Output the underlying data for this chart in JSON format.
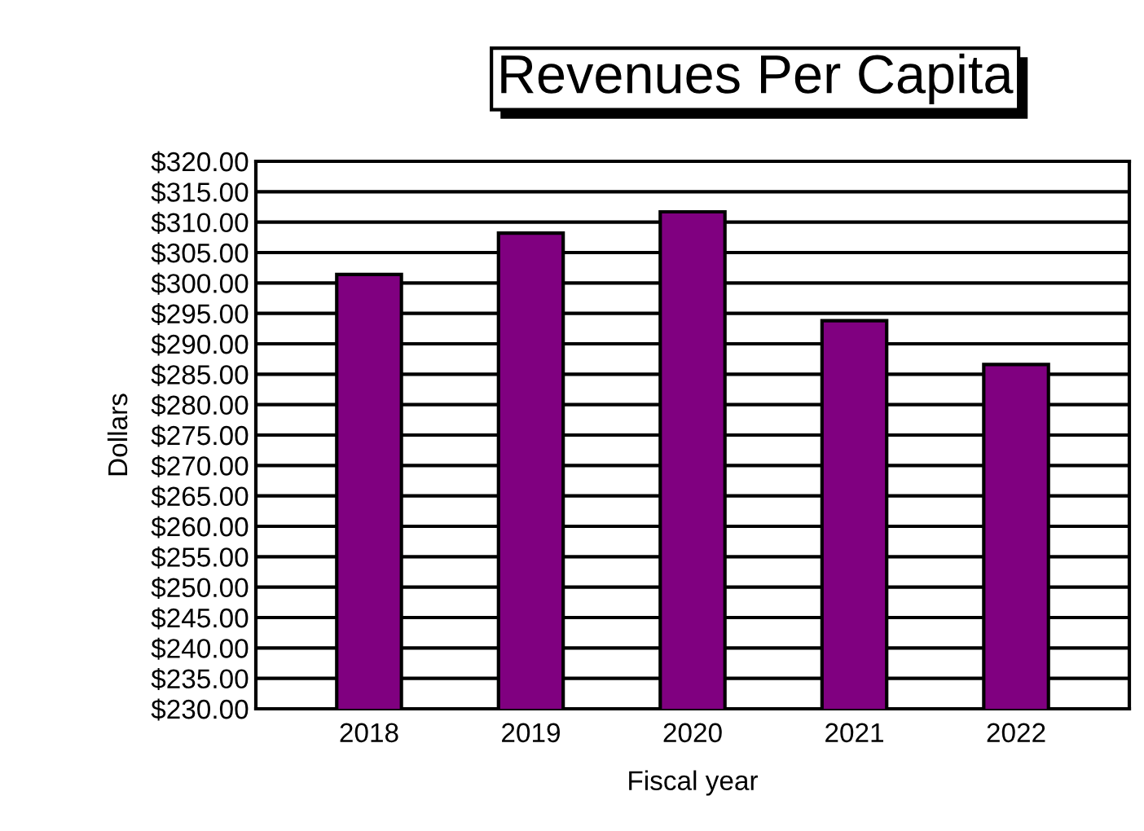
{
  "chart_data": {
    "type": "bar",
    "title": "Revenues Per Capita",
    "xlabel": "Fiscal year",
    "ylabel": "Dollars",
    "categories": [
      "2018",
      "2019",
      "2020",
      "2021",
      "2022"
    ],
    "values": [
      301.4,
      308.2,
      311.7,
      293.8,
      286.6
    ],
    "color": "#800080",
    "ylim": [
      230,
      320
    ],
    "yticks": [
      {
        "value": 230,
        "label": "$230.00"
      },
      {
        "value": 235,
        "label": "$235.00"
      },
      {
        "value": 240,
        "label": "$240.00"
      },
      {
        "value": 245,
        "label": "$245.00"
      },
      {
        "value": 250,
        "label": "$250.00"
      },
      {
        "value": 255,
        "label": "$255.00"
      },
      {
        "value": 260,
        "label": "$260.00"
      },
      {
        "value": 265,
        "label": "$265.00"
      },
      {
        "value": 270,
        "label": "$270.00"
      },
      {
        "value": 275,
        "label": "$275.00"
      },
      {
        "value": 280,
        "label": "$280.00"
      },
      {
        "value": 285,
        "label": "$285.00"
      },
      {
        "value": 290,
        "label": "$290.00"
      },
      {
        "value": 295,
        "label": "$295.00"
      },
      {
        "value": 300,
        "label": "$300.00"
      },
      {
        "value": 305,
        "label": "$305.00"
      },
      {
        "value": 310,
        "label": "$310.00"
      },
      {
        "value": 315,
        "label": "$315.00"
      },
      {
        "value": 320,
        "label": "$320.00"
      }
    ],
    "grid": "y",
    "legend": false
  }
}
